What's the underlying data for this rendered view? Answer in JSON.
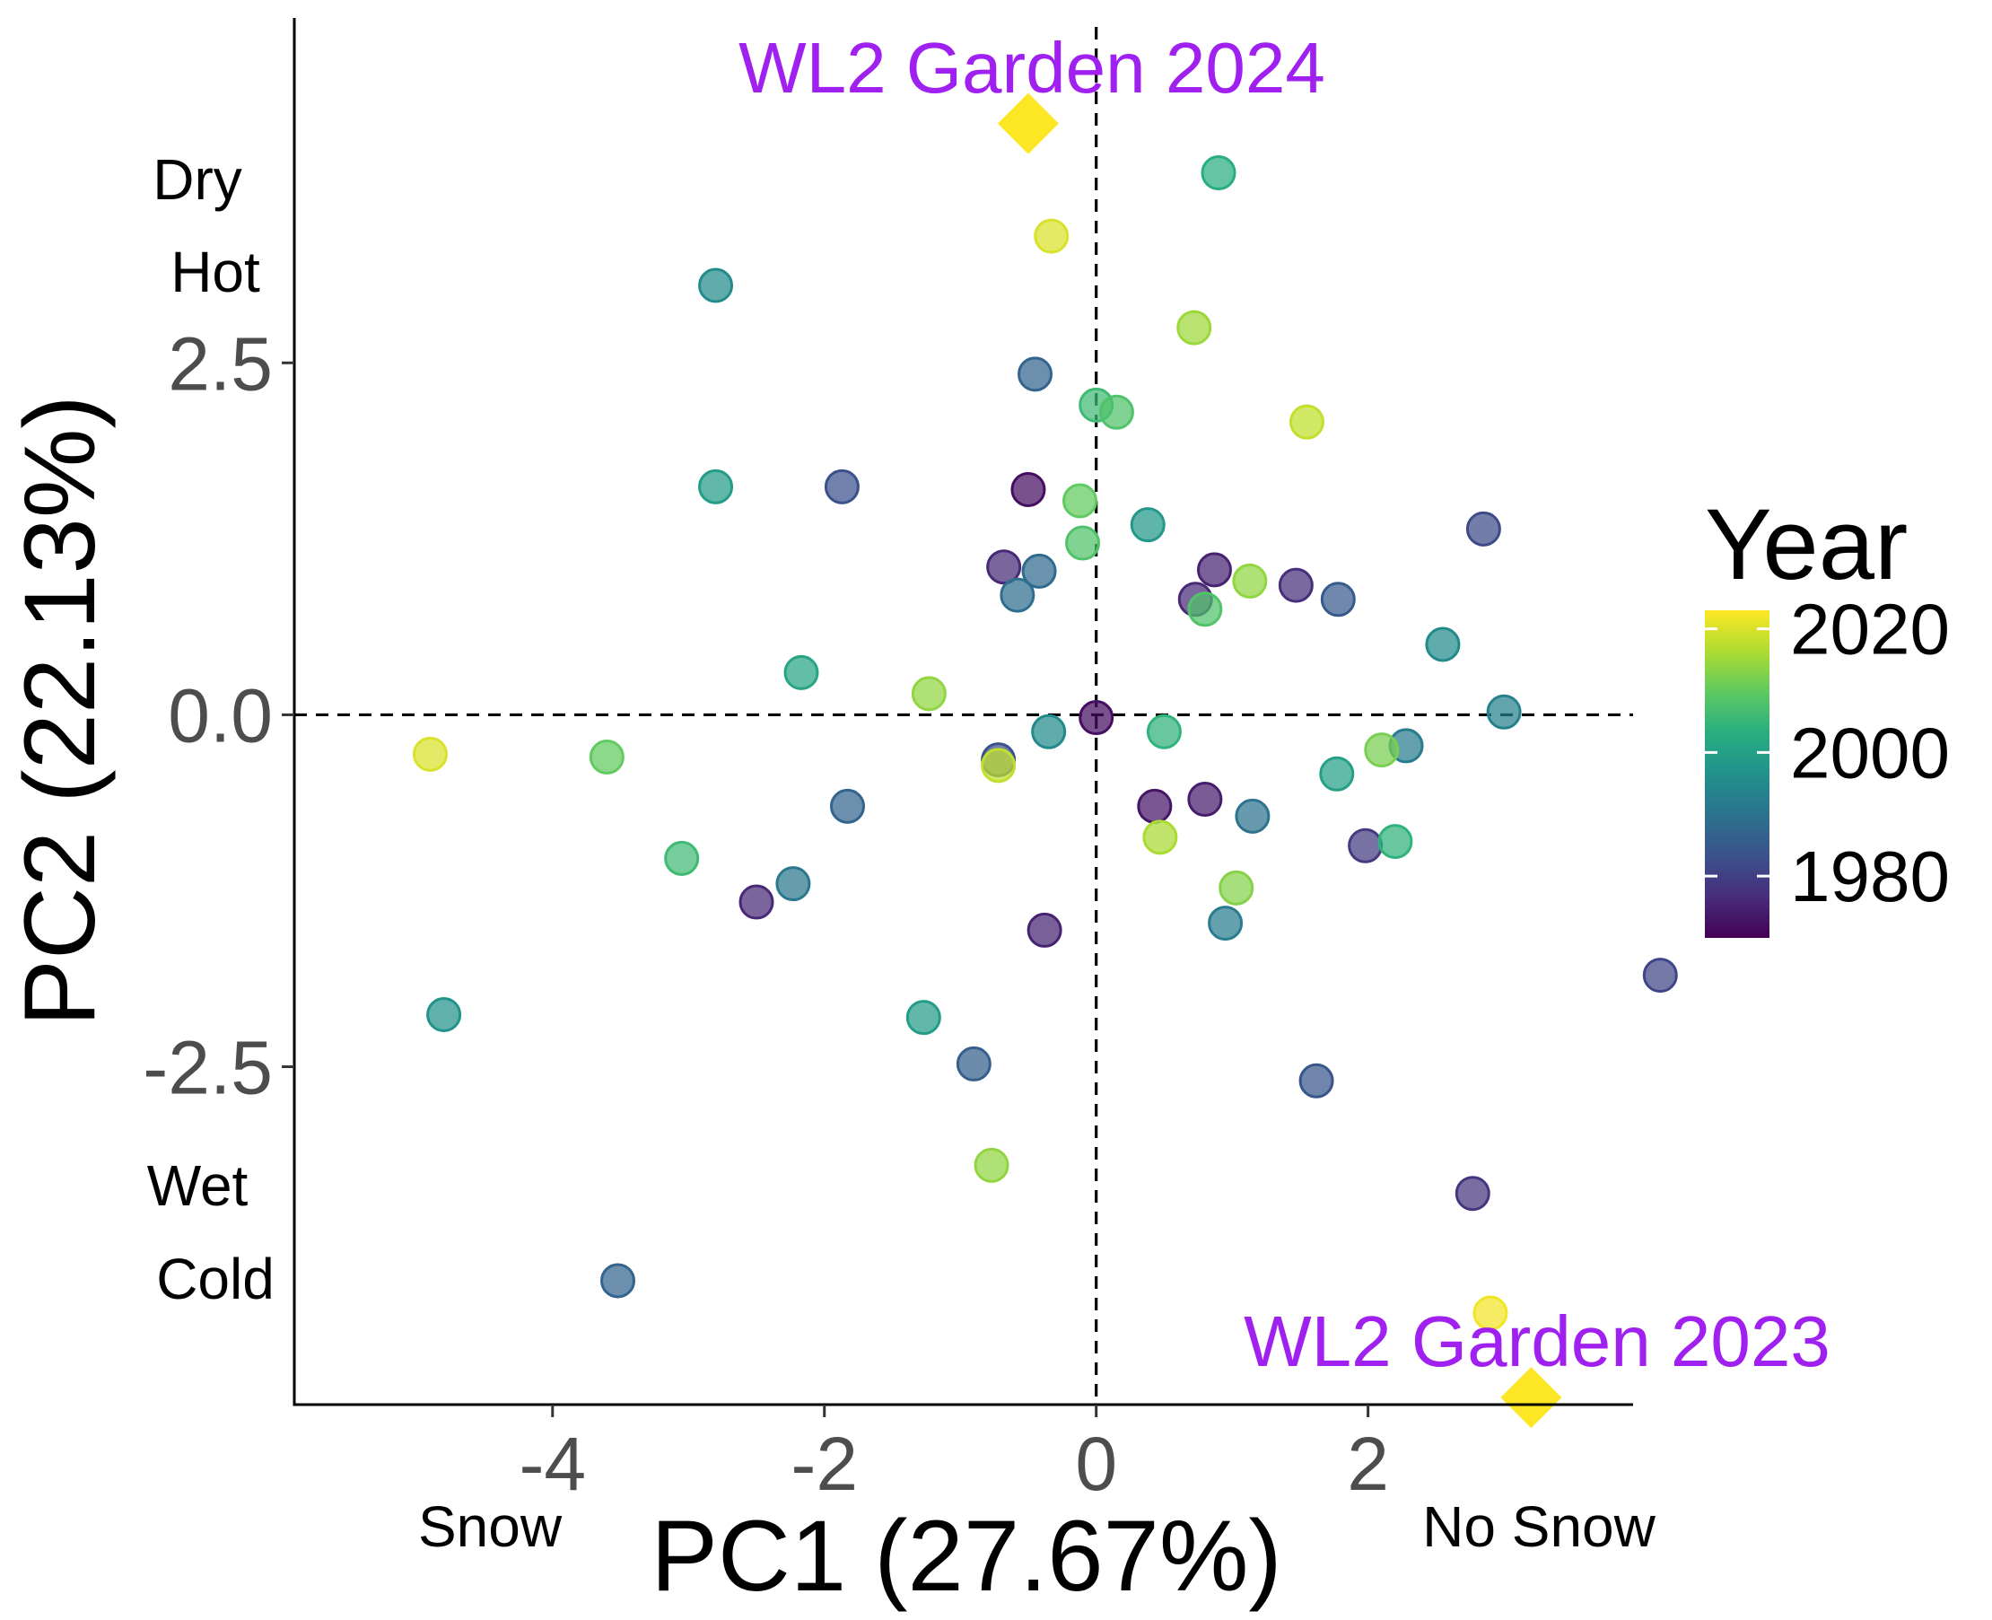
{
  "chart_data": {
    "type": "scatter",
    "xlabel": "PC1 (27.67%)",
    "ylabel": "PC2 (22.13%)",
    "xlim": [
      -5.9,
      3.95
    ],
    "ylim": [
      -4.9,
      4.95
    ],
    "x_ticks": [
      -4,
      -2,
      0,
      2
    ],
    "y_ticks": [
      -2.5,
      0.0,
      2.5
    ],
    "x_tick_labels": [
      "-4",
      "-2",
      "0",
      "2"
    ],
    "y_tick_labels": [
      "-2.5",
      "0.0",
      "2.5"
    ],
    "reference_lines": {
      "x": 0,
      "y": 0,
      "style": "dashed"
    },
    "grid": false,
    "side_labels": {
      "top_left": [
        "Dry",
        "Hot"
      ],
      "bottom_left": [
        "Wet",
        "Cold"
      ],
      "bottom_x_left": "Snow",
      "bottom_x_right": "No Snow"
    },
    "legend": {
      "title": "Year",
      "position": "right",
      "color_scale": "viridis",
      "range": [
        1970,
        2023
      ],
      "ticks": [
        1980,
        2000,
        2020
      ],
      "tick_labels": [
        "1980",
        "2000",
        "2020"
      ]
    },
    "gardens": [
      {
        "label": "WL2 Garden 2024",
        "x": -0.5,
        "y": 4.2,
        "color": "#FDE725"
      },
      {
        "label": "WL2 Garden 2023",
        "x": 3.2,
        "y": -4.85,
        "color": "#FDE725"
      }
    ],
    "label_color": "#A020F0",
    "points": [
      {
        "x": 0.9,
        "y": 3.85,
        "year": 2003
      },
      {
        "x": -0.33,
        "y": 3.4,
        "year": 2020
      },
      {
        "x": -2.8,
        "y": 3.05,
        "year": 1995
      },
      {
        "x": 0.72,
        "y": 2.75,
        "year": 2015
      },
      {
        "x": -0.45,
        "y": 2.42,
        "year": 1987
      },
      {
        "x": 0.0,
        "y": 2.2,
        "year": 2006
      },
      {
        "x": 0.15,
        "y": 2.15,
        "year": 2008
      },
      {
        "x": 1.55,
        "y": 2.08,
        "year": 2018
      },
      {
        "x": -2.8,
        "y": 1.62,
        "year": 1999
      },
      {
        "x": -1.87,
        "y": 1.62,
        "year": 1983
      },
      {
        "x": -0.5,
        "y": 1.6,
        "year": 1972
      },
      {
        "x": -0.12,
        "y": 1.52,
        "year": 2010
      },
      {
        "x": 0.38,
        "y": 1.35,
        "year": 1998
      },
      {
        "x": 2.85,
        "y": 1.32,
        "year": 1982
      },
      {
        "x": -0.1,
        "y": 1.22,
        "year": 2008
      },
      {
        "x": -0.68,
        "y": 1.05,
        "year": 1976
      },
      {
        "x": -0.42,
        "y": 1.02,
        "year": 1988
      },
      {
        "x": 0.87,
        "y": 1.03,
        "year": 1975
      },
      {
        "x": 1.13,
        "y": 0.95,
        "year": 2014
      },
      {
        "x": 1.47,
        "y": 0.92,
        "year": 1977
      },
      {
        "x": -0.58,
        "y": 0.85,
        "year": 1989
      },
      {
        "x": 0.73,
        "y": 0.82,
        "year": 1976
      },
      {
        "x": 1.78,
        "y": 0.82,
        "year": 1985
      },
      {
        "x": 0.8,
        "y": 0.75,
        "year": 2008
      },
      {
        "x": 2.55,
        "y": 0.5,
        "year": 1995
      },
      {
        "x": -2.17,
        "y": 0.3,
        "year": 2001
      },
      {
        "x": -1.23,
        "y": 0.15,
        "year": 2014
      },
      {
        "x": 3.0,
        "y": 0.02,
        "year": 1993
      },
      {
        "x": 0.0,
        "y": -0.02,
        "year": 1972
      },
      {
        "x": 0.5,
        "y": -0.12,
        "year": 2004
      },
      {
        "x": -0.35,
        "y": -0.12,
        "year": 1995
      },
      {
        "x": 2.28,
        "y": -0.22,
        "year": 1992
      },
      {
        "x": 2.1,
        "y": -0.25,
        "year": 2012
      },
      {
        "x": -4.9,
        "y": -0.28,
        "year": 2020
      },
      {
        "x": -3.6,
        "y": -0.3,
        "year": 2010
      },
      {
        "x": -0.72,
        "y": -0.32,
        "year": 1983
      },
      {
        "x": -0.72,
        "y": -0.36,
        "year": 2018
      },
      {
        "x": 1.77,
        "y": -0.42,
        "year": 2000
      },
      {
        "x": -1.83,
        "y": -0.65,
        "year": 1987
      },
      {
        "x": 0.43,
        "y": -0.65,
        "year": 1973
      },
      {
        "x": 0.8,
        "y": -0.6,
        "year": 1974
      },
      {
        "x": 1.15,
        "y": -0.72,
        "year": 1990
      },
      {
        "x": 0.47,
        "y": -0.87,
        "year": 2016
      },
      {
        "x": 1.98,
        "y": -0.93,
        "year": 1979
      },
      {
        "x": 2.2,
        "y": -0.9,
        "year": 2004
      },
      {
        "x": -3.05,
        "y": -1.02,
        "year": 2006
      },
      {
        "x": -2.23,
        "y": -1.2,
        "year": 1991
      },
      {
        "x": 1.03,
        "y": -1.23,
        "year": 2013
      },
      {
        "x": -2.5,
        "y": -1.33,
        "year": 1976
      },
      {
        "x": 0.95,
        "y": -1.48,
        "year": 1992
      },
      {
        "x": -0.38,
        "y": -1.53,
        "year": 1975
      },
      {
        "x": 4.15,
        "y": -1.85,
        "year": 1981
      },
      {
        "x": -4.8,
        "y": -2.13,
        "year": 1997
      },
      {
        "x": -1.27,
        "y": -2.15,
        "year": 1999
      },
      {
        "x": -0.9,
        "y": -2.48,
        "year": 1986
      },
      {
        "x": 1.62,
        "y": -2.6,
        "year": 1984
      },
      {
        "x": -0.77,
        "y": -3.2,
        "year": 2014
      },
      {
        "x": 2.77,
        "y": -3.4,
        "year": 1978
      },
      {
        "x": -3.52,
        "y": -4.02,
        "year": 1987
      },
      {
        "x": 2.9,
        "y": -4.25,
        "year": 2022
      }
    ]
  }
}
